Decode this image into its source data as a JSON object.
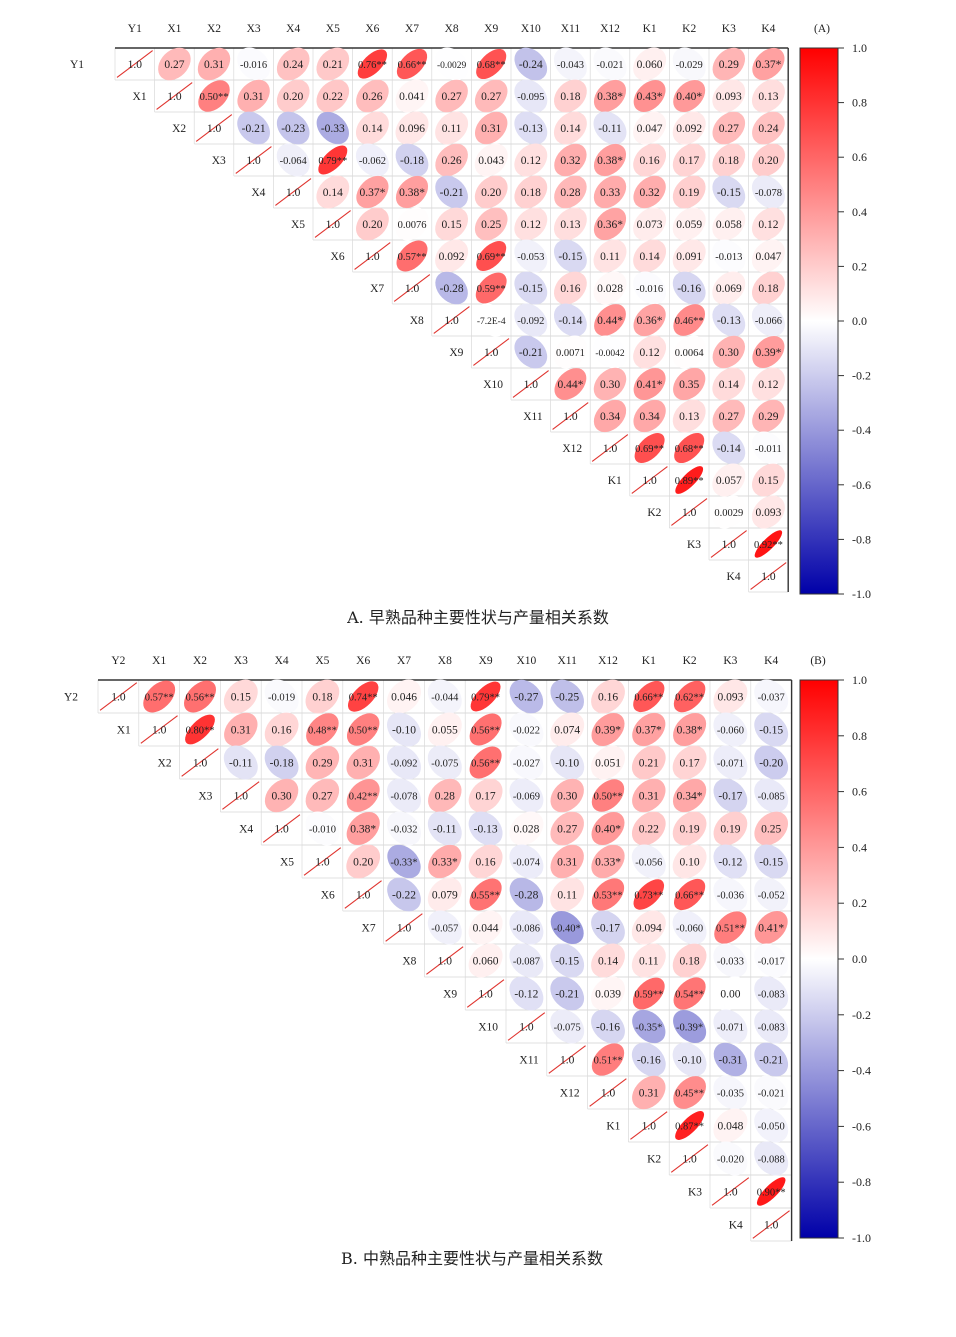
{
  "chart_data": [
    {
      "type": "heatmap",
      "panel_label": "(A)",
      "caption": "A. 早熟品种主要性状与产量相关系数",
      "variables": [
        "Y1",
        "X1",
        "X2",
        "X3",
        "X4",
        "X5",
        "X6",
        "X7",
        "X8",
        "X9",
        "X10",
        "X11",
        "X12",
        "K1",
        "K2",
        "K3",
        "K4"
      ],
      "value_range": [
        -1.0,
        1.0
      ],
      "colorbar_ticks": [
        "1.0",
        "0.8",
        "0.6",
        "0.4",
        "0.2",
        "0.0",
        "-0.2",
        "-0.4",
        "-0.6",
        "-0.8",
        "-1.0"
      ],
      "colors": {
        "positive": "#ff0000",
        "zero": "#ffffff",
        "negative": "#0000a8"
      },
      "matrix_upper": [
        [
          "1.0",
          "0.27",
          "0.31",
          "-0.016",
          "0.24",
          "0.21",
          "0.76**",
          "0.66**",
          "-0.0029",
          "0.68**",
          "-0.24",
          "-0.043",
          "-0.021",
          "0.060",
          "-0.029",
          "0.29",
          "0.37*"
        ],
        [
          "1.0",
          "0.50**",
          "0.31",
          "0.20",
          "0.22",
          "0.26",
          "0.041",
          "0.27",
          "0.27",
          "-0.095",
          "0.18",
          "0.38*",
          "0.43*",
          "0.40*",
          "0.093",
          "0.13"
        ],
        [
          "1.0",
          "-0.21",
          "-0.23",
          "-0.33",
          "0.14",
          "0.096",
          "0.11",
          "0.31",
          "-0.13",
          "0.14",
          "-0.11",
          "0.047",
          "0.092",
          "0.27",
          "0.24"
        ],
        [
          "1.0",
          "-0.064",
          "0.79**",
          "-0.062",
          "-0.18",
          "0.26",
          "0.043",
          "0.12",
          "0.32",
          "0.38*",
          "0.16",
          "0.17",
          "0.18",
          "0.20"
        ],
        [
          "1.0",
          "0.14",
          "0.37*",
          "0.38*",
          "-0.21",
          "0.20",
          "0.18",
          "0.28",
          "0.33",
          "0.32",
          "0.19",
          "-0.15",
          "-0.078"
        ],
        [
          "1.0",
          "0.20",
          "0.0076",
          "0.15",
          "0.25",
          "0.12",
          "0.13",
          "0.36*",
          "0.073",
          "0.059",
          "0.058",
          "0.12"
        ],
        [
          "1.0",
          "0.57**",
          "0.092",
          "0.69**",
          "-0.053",
          "-0.15",
          "0.11",
          "0.14",
          "0.091",
          "-0.013",
          "0.047"
        ],
        [
          "1.0",
          "-0.28",
          "0.59**",
          "-0.15",
          "0.16",
          "0.028",
          "-0.016",
          "-0.16",
          "0.069",
          "0.18"
        ],
        [
          "1.0",
          "-7.2E-4",
          "-0.092",
          "-0.14",
          "0.44*",
          "0.36*",
          "0.46**",
          "-0.13",
          "-0.066"
        ],
        [
          "1.0",
          "-0.21",
          "0.0071",
          "-0.0042",
          "0.12",
          "0.0064",
          "0.30",
          "0.39*"
        ],
        [
          "1.0",
          "0.44*",
          "0.30",
          "0.41*",
          "0.35",
          "0.14",
          "0.12"
        ],
        [
          "1.0",
          "0.34",
          "0.34",
          "0.13",
          "0.27",
          "0.29"
        ],
        [
          "1.0",
          "0.69**",
          "0.68**",
          "-0.14",
          "-0.011"
        ],
        [
          "1.0",
          "0.89**",
          "0.057",
          "0.15"
        ],
        [
          "1.0",
          "0.0029",
          "0.093"
        ],
        [
          "1.0",
          "0.92**"
        ],
        [
          "1.0"
        ]
      ]
    },
    {
      "type": "heatmap",
      "panel_label": "(B)",
      "caption": "B. 中熟品种主要性状与产量相关系数",
      "variables": [
        "Y2",
        "X1",
        "X2",
        "X3",
        "X4",
        "X5",
        "X6",
        "X7",
        "X8",
        "X9",
        "X10",
        "X11",
        "X12",
        "K1",
        "K2",
        "K3",
        "K4"
      ],
      "value_range": [
        -1.0,
        1.0
      ],
      "colorbar_ticks": [
        "1.0",
        "0.8",
        "0.6",
        "0.4",
        "0.2",
        "0.0",
        "-0.2",
        "-0.4",
        "-0.6",
        "-0.8",
        "-1.0"
      ],
      "colors": {
        "positive": "#ff0000",
        "zero": "#ffffff",
        "negative": "#0000a8"
      },
      "matrix_upper": [
        [
          "1.0",
          "0.57**",
          "0.56**",
          "0.15",
          "-0.019",
          "0.18",
          "0.74**",
          "0.046",
          "-0.044",
          "0.79**",
          "-0.27",
          "-0.25",
          "0.16",
          "0.66**",
          "0.62**",
          "0.093",
          "-0.037"
        ],
        [
          "1.0",
          "0.80**",
          "0.31",
          "0.16",
          "0.48**",
          "0.50**",
          "-0.10",
          "0.055",
          "0.56**",
          "-0.022",
          "0.074",
          "0.39*",
          "0.37*",
          "0.38*",
          "-0.060",
          "-0.15"
        ],
        [
          "1.0",
          "-0.11",
          "-0.18",
          "0.29",
          "0.31",
          "-0.092",
          "-0.075",
          "0.56**",
          "-0.027",
          "-0.10",
          "0.051",
          "0.21",
          "0.17",
          "-0.071",
          "-0.20"
        ],
        [
          "1.0",
          "0.30",
          "0.27",
          "0.42**",
          "-0.078",
          "0.28",
          "0.17",
          "-0.069",
          "0.30",
          "0.50**",
          "0.31",
          "0.34*",
          "-0.17",
          "-0.085"
        ],
        [
          "1.0",
          "-0.010",
          "0.38*",
          "-0.032",
          "-0.11",
          "-0.13",
          "0.028",
          "0.27",
          "0.40*",
          "0.22",
          "0.19",
          "0.19",
          "0.25"
        ],
        [
          "1.0",
          "0.20",
          "-0.33*",
          "0.33*",
          "0.16",
          "-0.074",
          "0.31",
          "0.33*",
          "-0.056",
          "0.10",
          "-0.12",
          "-0.15"
        ],
        [
          "1.0",
          "-0.22",
          "0.079",
          "0.55**",
          "-0.28",
          "0.11",
          "0.53**",
          "0.73**",
          "0.66**",
          "-0.036",
          "-0.052"
        ],
        [
          "1.0",
          "-0.057",
          "0.044",
          "-0.086",
          "-0.40*",
          "-0.17",
          "0.094",
          "-0.060",
          "0.51**",
          "0.41*"
        ],
        [
          "1.0",
          "0.060",
          "-0.087",
          "-0.15",
          "0.14",
          "0.11",
          "0.18",
          "-0.033",
          "-0.017"
        ],
        [
          "1.0",
          "-0.12",
          "-0.21",
          "0.039",
          "0.59**",
          "0.54**",
          "0.00",
          "-0.083"
        ],
        [
          "1.0",
          "-0.075",
          "-0.16",
          "-0.35*",
          "-0.39*",
          "-0.071",
          "-0.083"
        ],
        [
          "1.0",
          "0.51**",
          "-0.16",
          "-0.10",
          "-0.31",
          "-0.21"
        ],
        [
          "1.0",
          "0.31",
          "0.45**",
          "-0.035",
          "-0.021"
        ],
        [
          "1.0",
          "0.87**",
          "0.048",
          "-0.050"
        ],
        [
          "1.0",
          "-0.020",
          "-0.088"
        ],
        [
          "1.0",
          "0.90**"
        ],
        [
          "1.0"
        ]
      ]
    }
  ]
}
